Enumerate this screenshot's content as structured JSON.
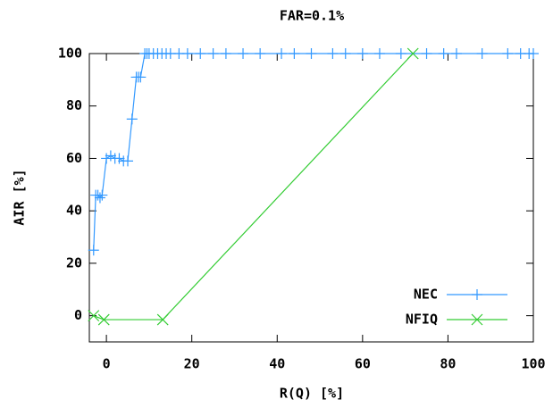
{
  "chart_data": {
    "type": "line",
    "title": "FAR=0.1%",
    "x_label": "R(Q) [%]",
    "y_label": "AIR [%]",
    "xlim": [
      -4,
      100
    ],
    "ylim": [
      -10,
      100
    ],
    "xticks": [
      0,
      20,
      40,
      60,
      80,
      100
    ],
    "yticks": [
      0,
      20,
      40,
      60,
      80,
      100
    ],
    "legend": "bottom right",
    "series": [
      {
        "name": "NEC",
        "color": "#3399ff",
        "marker": "plus",
        "x": [
          -3,
          -2.5,
          -2,
          -1.5,
          -1,
          0,
          1,
          2,
          3,
          4,
          5,
          6,
          7,
          7.5,
          8,
          9,
          9.5,
          10,
          11,
          12,
          13,
          14,
          15,
          17,
          19,
          22,
          25,
          28,
          32,
          36,
          41,
          44,
          48,
          53,
          56,
          60,
          64,
          69,
          75,
          79,
          82,
          88,
          94,
          97,
          99,
          100
        ],
        "values": [
          25,
          46,
          46,
          45,
          46,
          60,
          61,
          60,
          60,
          59,
          59,
          75,
          91,
          91,
          91,
          100,
          100,
          100,
          100,
          100,
          100,
          100,
          100,
          100,
          100,
          100,
          100,
          100,
          100,
          100,
          100,
          100,
          100,
          100,
          100,
          100,
          100,
          100,
          100,
          100,
          100,
          100,
          100,
          100,
          100,
          100
        ]
      },
      {
        "name": "NFIQ",
        "color": "#33cc33",
        "marker": "cross",
        "x": [
          -3,
          -0.6,
          13.2,
          71.8
        ],
        "values": [
          0,
          -1.5,
          -1.5,
          100
        ]
      }
    ]
  }
}
